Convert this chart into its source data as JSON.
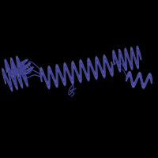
{
  "background_color": "#000000",
  "helix_fill_color": "#6b6bbf",
  "helix_edge_color": "#3a3a8a",
  "loop_color": "#4040a0",
  "fig_size": [
    2.0,
    2.0
  ],
  "dpi": 100,
  "xlim": [
    0,
    200
  ],
  "ylim": [
    0,
    200
  ]
}
